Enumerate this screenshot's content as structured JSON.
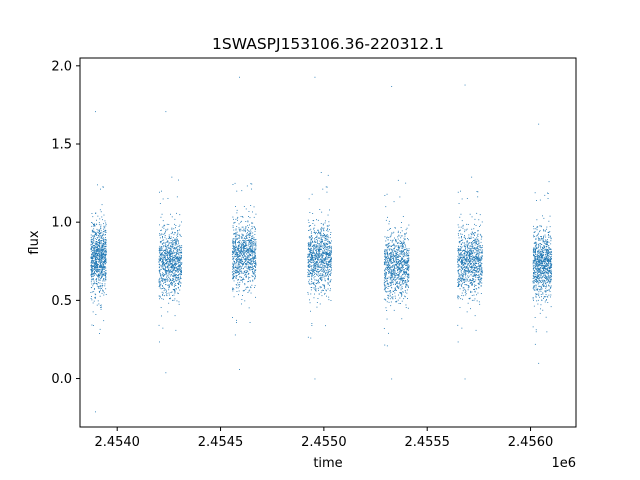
{
  "chart_data": {
    "type": "scatter",
    "title": "1SWASPJ153106.36-220312.1",
    "xlabel": "time",
    "ylabel": "flux",
    "x_offset_label": "1e6",
    "xlim": [
      2453820,
      2456220
    ],
    "ylim": [
      -0.31,
      2.05
    ],
    "x_ticks": [
      2454000,
      2454500,
      2455000,
      2455500,
      2456000
    ],
    "x_tick_labels": [
      "2.4540",
      "2.4545",
      "2.4550",
      "2.4555",
      "2.4560"
    ],
    "y_ticks": [
      0.0,
      0.5,
      1.0,
      1.5,
      2.0
    ],
    "y_tick_labels": [
      "0.0",
      "0.5",
      "1.0",
      "1.5",
      "2.0"
    ],
    "grid": false,
    "marker_color": "#1f77b4",
    "observing_seasons": [
      {
        "start": 2453870,
        "end": 2453945,
        "flux_median": 0.78,
        "flux_min": -0.21,
        "flux_max": 1.71
      },
      {
        "start": 2454200,
        "end": 2454310,
        "flux_median": 0.75,
        "flux_min": 0.04,
        "flux_max": 1.71
      },
      {
        "start": 2454555,
        "end": 2454670,
        "flux_median": 0.8,
        "flux_min": 0.06,
        "flux_max": 1.93
      },
      {
        "start": 2454920,
        "end": 2455035,
        "flux_median": 0.78,
        "flux_min": 0.0,
        "flux_max": 1.93
      },
      {
        "start": 2455290,
        "end": 2455410,
        "flux_median": 0.73,
        "flux_min": 0.0,
        "flux_max": 1.87
      },
      {
        "start": 2455645,
        "end": 2455765,
        "flux_median": 0.75,
        "flux_min": 0.0,
        "flux_max": 1.88
      },
      {
        "start": 2456010,
        "end": 2456100,
        "flux_median": 0.74,
        "flux_min": 0.1,
        "flux_max": 1.63
      }
    ]
  }
}
